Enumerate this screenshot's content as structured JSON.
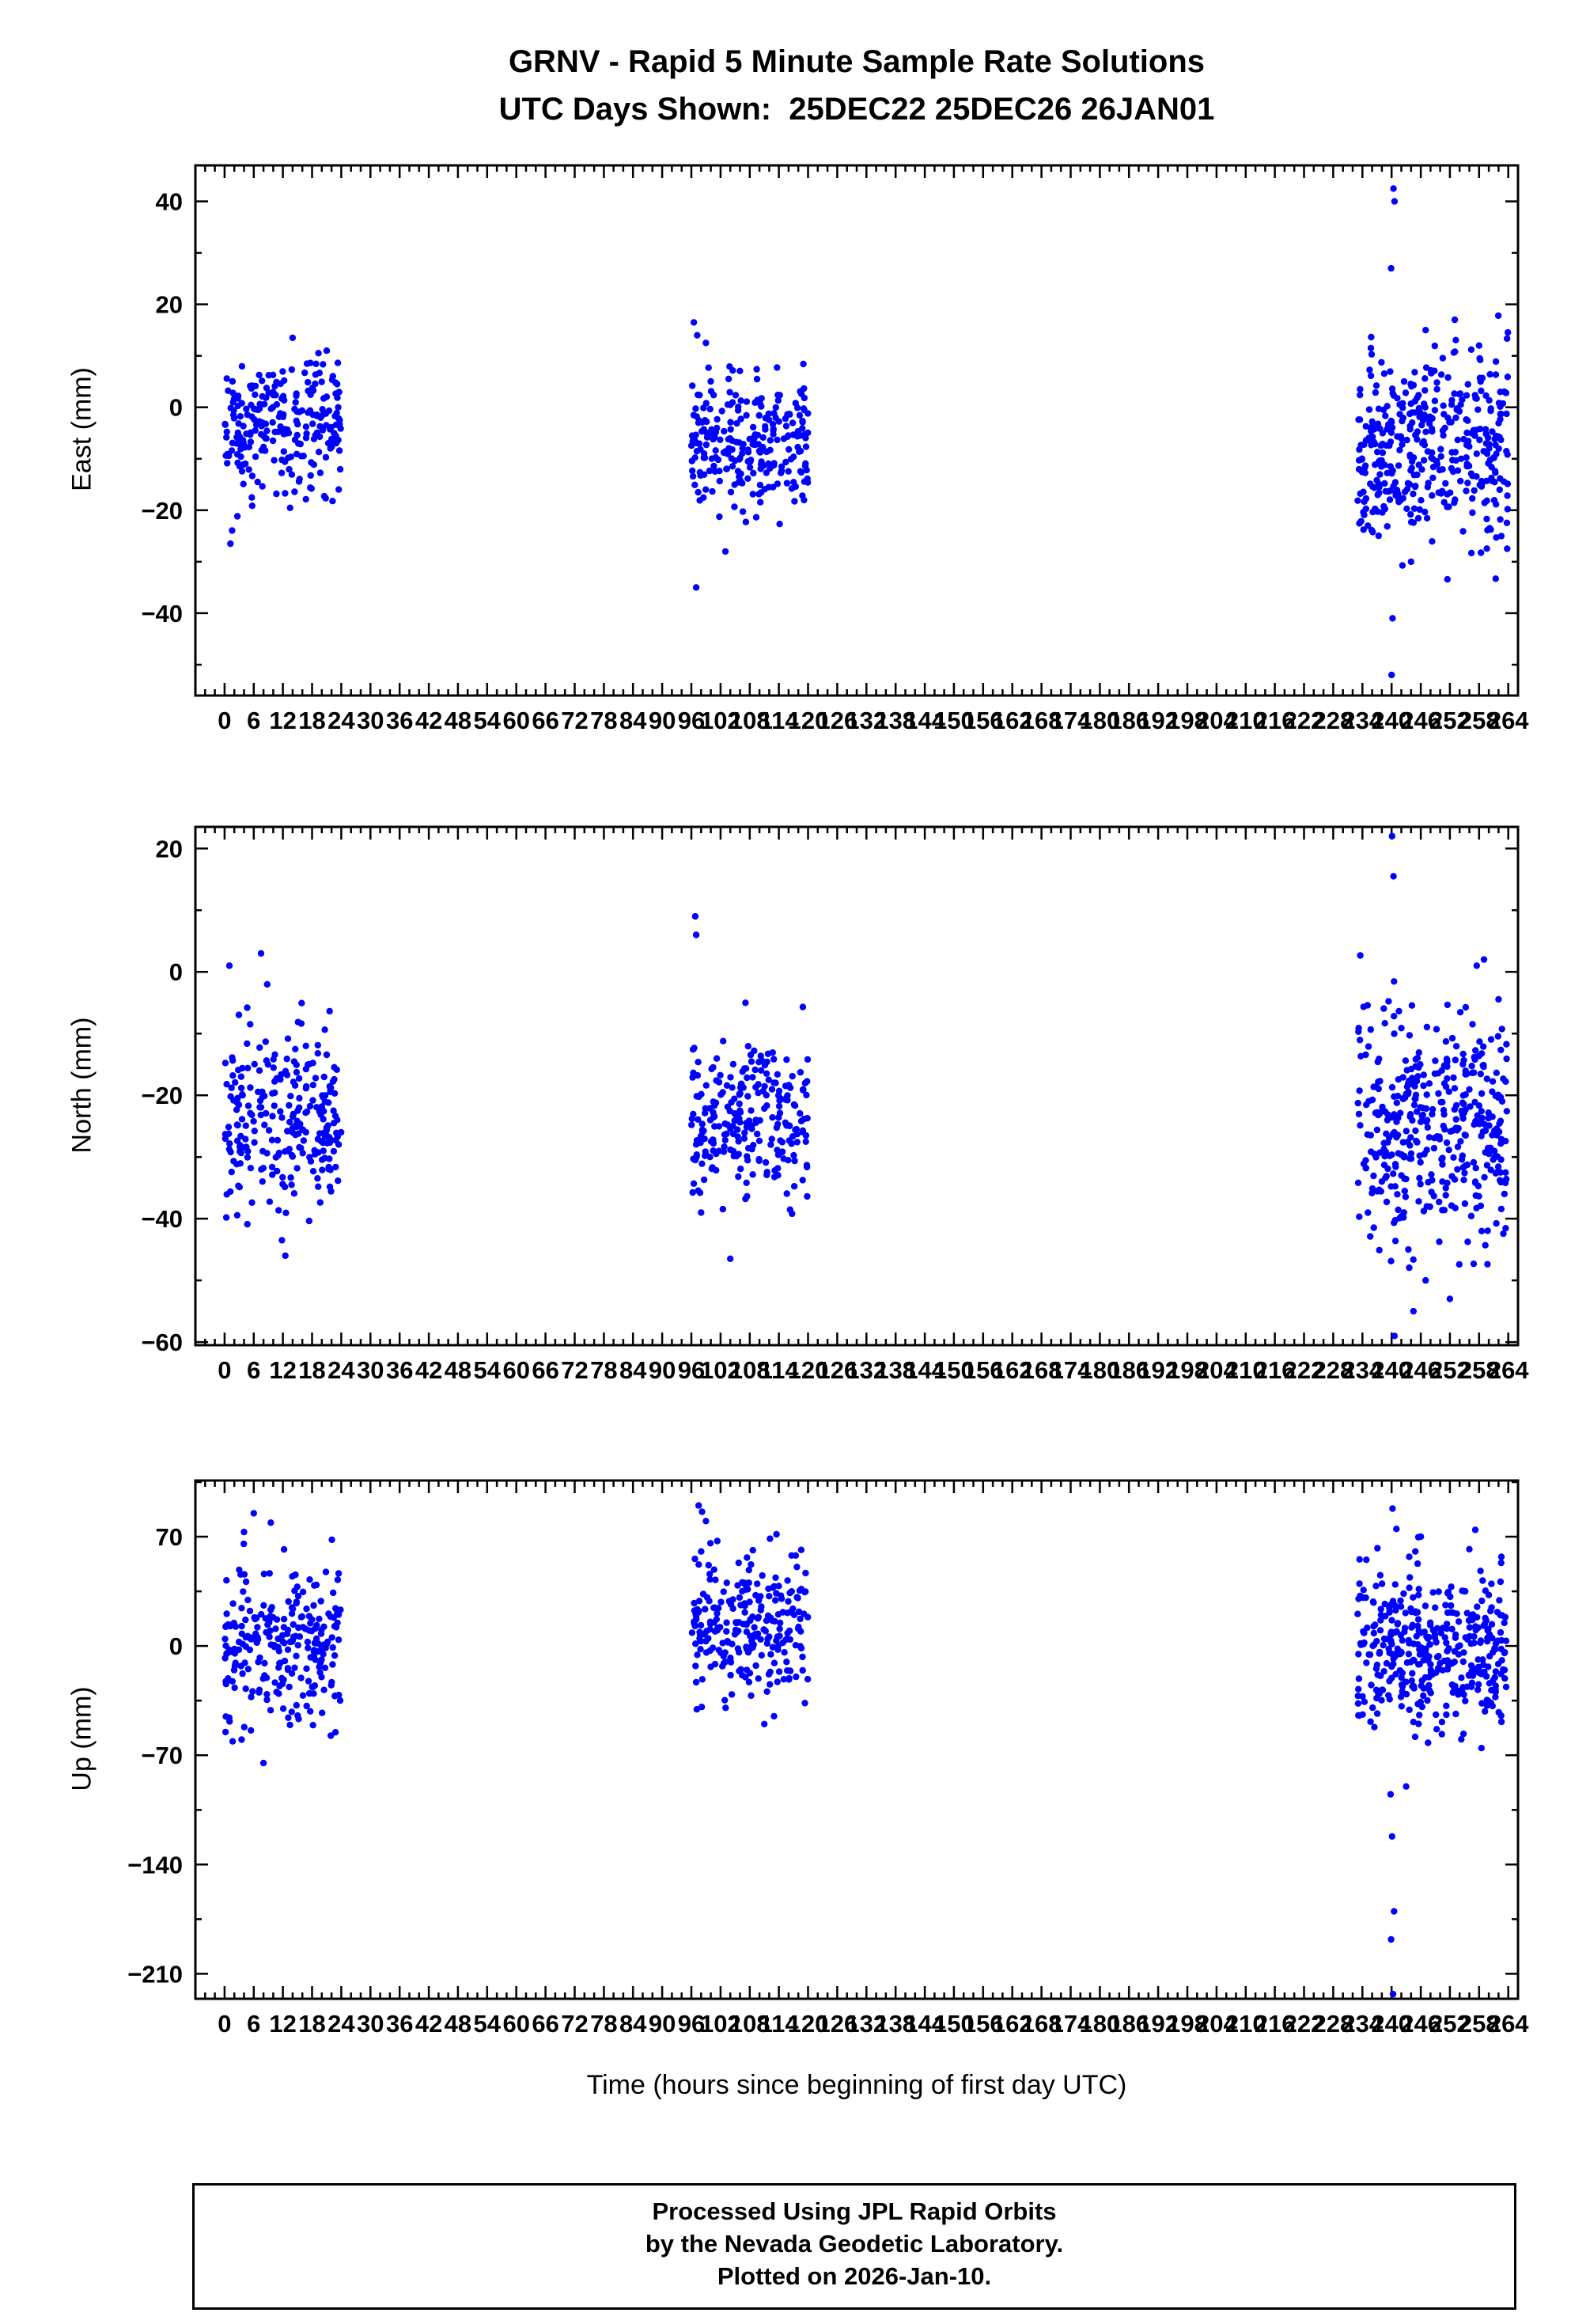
{
  "chart_data": {
    "type": "scatter",
    "title": "GRNV - Rapid 5 Minute Sample Rate Solutions",
    "subtitle": "UTC Days Shown:  25DEC22 25DEC26 26JAN01",
    "xlabel": "Time (hours since beginning of first day UTC)",
    "days_shown": [
      "25DEC22",
      "25DEC26",
      "26JAN01"
    ],
    "marker_color": "#0000ff",
    "xlim": [
      -6,
      266
    ],
    "xtick": {
      "label_start": 0,
      "label_end": 264,
      "label_step": 6,
      "minor_step": 2
    },
    "panels": [
      {
        "id": "east",
        "ylabel": "East (mm)",
        "ylim": [
          -56,
          47
        ],
        "yticks": [
          -40,
          -20,
          0,
          20,
          40
        ],
        "clusters": [
          {
            "x0": 0,
            "x1": 24,
            "n": 250,
            "mean": -3.5,
            "std": 6.5,
            "min": -24,
            "max": 14,
            "extra": [
              [
                1.2,
                -26.5
              ],
              [
                21,
                11
              ],
              [
                14,
                13.5
              ]
            ]
          },
          {
            "x0": 96,
            "x1": 120,
            "n": 250,
            "mean": -7,
            "std": 6.5,
            "min": -30,
            "max": 13,
            "extra": [
              [
                97,
                -35
              ],
              [
                96.5,
                16.5
              ],
              [
                97.2,
                14
              ],
              [
                103,
                -28
              ],
              [
                99,
                12.5
              ]
            ]
          },
          {
            "x0": 233,
            "x1": 264,
            "n": 400,
            "mean": -8,
            "std": 9.5,
            "min": -34,
            "max": 22,
            "extra": [
              [
                240.4,
                42.5
              ],
              [
                240.6,
                40
              ],
              [
                239.9,
                27
              ],
              [
                240.2,
                -41
              ],
              [
                240.0,
                -52
              ],
              [
                253,
                17
              ],
              [
                247,
                15
              ],
              [
                258,
                12
              ],
              [
                244,
                -30
              ]
            ]
          }
        ]
      },
      {
        "id": "north",
        "ylabel": "North (mm)",
        "ylim": [
          -60.5,
          23.5
        ],
        "yticks": [
          -60,
          -40,
          -20,
          0,
          20
        ],
        "clusters": [
          {
            "x0": 0,
            "x1": 24,
            "n": 250,
            "mean": -23,
            "std": 7.5,
            "min": -42,
            "max": 2,
            "extra": [
              [
                7.5,
                3
              ],
              [
                1,
                1
              ],
              [
                12.5,
                -46
              ],
              [
                11.8,
                -43.5
              ]
            ]
          },
          {
            "x0": 96,
            "x1": 120,
            "n": 250,
            "mean": -24,
            "std": 7,
            "min": -40,
            "max": 4,
            "extra": [
              [
                97,
                6
              ],
              [
                96.8,
                9
              ],
              [
                104,
                -46.5
              ],
              [
                98,
                -39
              ]
            ]
          },
          {
            "x0": 233,
            "x1": 264,
            "n": 400,
            "mean": -25,
            "std": 10,
            "min": -48,
            "max": 5,
            "extra": [
              [
                240.1,
                22
              ],
              [
                240.4,
                15.5
              ],
              [
                257.5,
                1
              ],
              [
                259,
                2
              ],
              [
                240.6,
                -59
              ],
              [
                244.5,
                -55
              ],
              [
                252,
                -53
              ],
              [
                247,
                -50
              ]
            ]
          }
        ]
      },
      {
        "id": "up",
        "ylabel": "Up (mm)",
        "ylim": [
          -226,
          106
        ],
        "yticks": [
          -210,
          -140,
          -70,
          0,
          70
        ],
        "clusters": [
          {
            "x0": 0,
            "x1": 24,
            "n": 250,
            "mean": 0,
            "std": 25,
            "min": -62,
            "max": 70,
            "extra": [
              [
                6,
                85
              ],
              [
                9.5,
                79
              ],
              [
                4,
                73
              ],
              [
                8,
                -75
              ],
              [
                3.5,
                -60
              ]
            ]
          },
          {
            "x0": 96,
            "x1": 120,
            "n": 250,
            "mean": 15,
            "std": 24,
            "min": -42,
            "max": 75,
            "extra": [
              [
                97.5,
                90
              ],
              [
                98.2,
                86
              ],
              [
                99,
                80
              ],
              [
                111,
                -50
              ],
              [
                113,
                -45
              ]
            ]
          },
          {
            "x0": 233,
            "x1": 264,
            "n": 400,
            "mean": -3,
            "std": 28,
            "min": -70,
            "max": 78,
            "extra": [
              [
                240.2,
                88
              ],
              [
                241,
                75
              ],
              [
                246,
                70
              ],
              [
                239.8,
                -95
              ],
              [
                240.1,
                -122
              ],
              [
                240.5,
                -170
              ],
              [
                239.9,
                -188
              ],
              [
                240.3,
                -223
              ],
              [
                243,
                -90
              ],
              [
                256,
                62
              ]
            ]
          }
        ]
      }
    ]
  },
  "footer": {
    "line1": "Processed Using JPL Rapid Orbits",
    "line2": "by the Nevada Geodetic Laboratory.",
    "line3": "Plotted on 2026-Jan-10."
  }
}
